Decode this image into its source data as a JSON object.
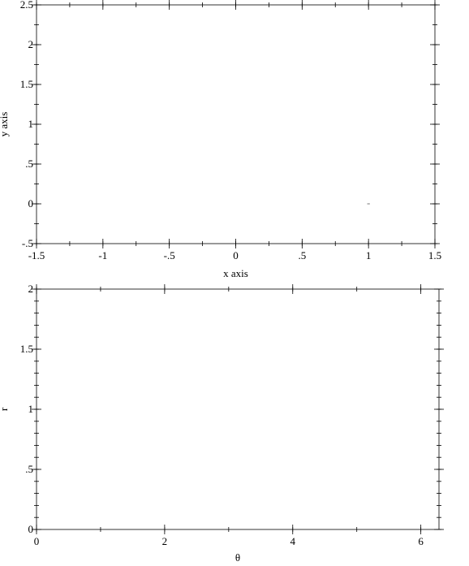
{
  "chart_data": [
    {
      "type": "line",
      "title": "",
      "xlabel": "x axis",
      "ylabel": "y axis",
      "xlim": [
        -1.5,
        1.5
      ],
      "ylim": [
        -0.5,
        2.5
      ],
      "x_ticks": [
        {
          "value": -1.5,
          "label": "-1.5"
        },
        {
          "value": -1,
          "label": "-1"
        },
        {
          "value": -0.5,
          "label": "-.5"
        },
        {
          "value": 0,
          "label": "0"
        },
        {
          "value": 0.5,
          "label": ".5"
        },
        {
          "value": 1,
          "label": "1"
        },
        {
          "value": 1.5,
          "label": "1.5"
        }
      ],
      "y_ticks": [
        {
          "value": -0.5,
          "label": "-.5"
        },
        {
          "value": 0,
          "label": "0"
        },
        {
          "value": 0.5,
          "label": ".5"
        },
        {
          "value": 1,
          "label": "1"
        },
        {
          "value": 1.5,
          "label": "1.5"
        },
        {
          "value": 2,
          "label": "2"
        },
        {
          "value": 2.5,
          "label": "2.5"
        }
      ],
      "x_minor_step": 0.25,
      "y_minor_step": 0.25,
      "series": [
        {
          "x": [
            0.99,
            1.01
          ],
          "y": [
            0,
            0
          ]
        }
      ],
      "grid": false
    },
    {
      "type": "line",
      "title": "",
      "xlabel": "θ",
      "ylabel": "r",
      "xlim": [
        0,
        6.2832
      ],
      "ylim": [
        0,
        2
      ],
      "x_ticks": [
        {
          "value": 0,
          "label": "0"
        },
        {
          "value": 2,
          "label": "2"
        },
        {
          "value": 4,
          "label": "4"
        },
        {
          "value": 6,
          "label": "6"
        }
      ],
      "y_ticks": [
        {
          "value": 0,
          "label": "0"
        },
        {
          "value": 0.5,
          "label": ".5"
        },
        {
          "value": 1,
          "label": "1"
        },
        {
          "value": 1.5,
          "label": "1.5"
        },
        {
          "value": 2,
          "label": "2"
        }
      ],
      "x_minor_step": 1,
      "y_minor_step": 0.1,
      "series": [],
      "grid": false
    }
  ]
}
